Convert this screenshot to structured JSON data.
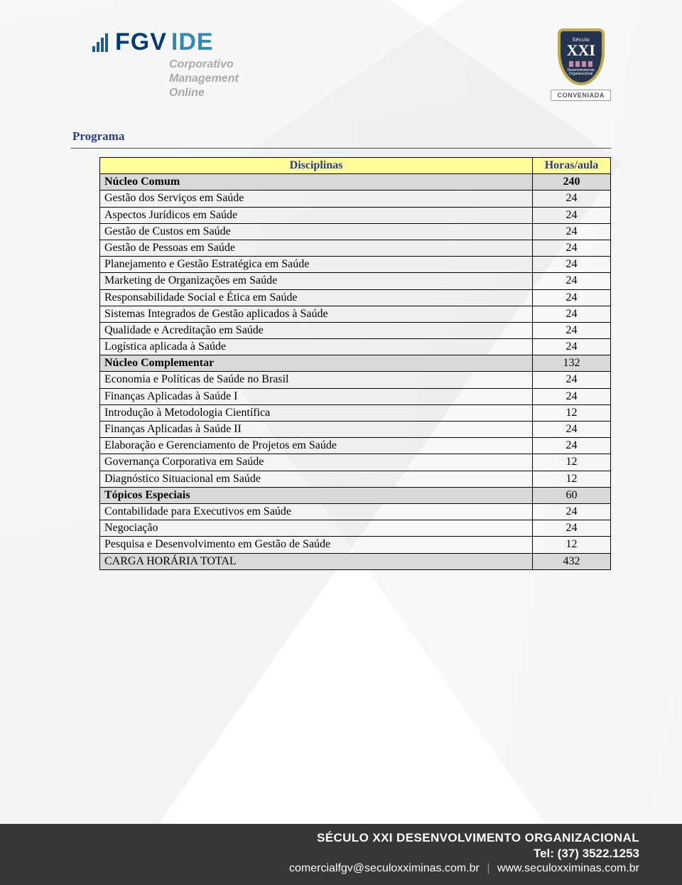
{
  "header": {
    "logo_main": "FGV",
    "logo_suffix": "IDE",
    "sub1": "Corporativo",
    "sub2": "Management",
    "sub3": "Online",
    "shield_top": "Século",
    "shield_main": "XXI",
    "shield_sub1": "Desenvolvimento",
    "shield_sub2": "Organizacional",
    "conveniada": "CONVENIADA"
  },
  "section_title": "Programa",
  "table": {
    "header_bg": "#ffff99",
    "section_bg": "#d9d9d9",
    "header_color": "#2a3b8f",
    "col_label": "Disciplinas",
    "col_value": "Horas/aula",
    "rows": [
      {
        "label": "Núcleo Comum",
        "value": "240",
        "type": "section-bold"
      },
      {
        "label": "Gestão dos Serviços em Saúde",
        "value": "24",
        "type": "data"
      },
      {
        "label": "Aspectos Jurídicos em Saúde",
        "value": "24",
        "type": "data"
      },
      {
        "label": "Gestão de Custos em Saúde",
        "value": "24",
        "type": "data"
      },
      {
        "label": "Gestão de Pessoas em Saúde",
        "value": "24",
        "type": "data"
      },
      {
        "label": "Planejamento e Gestão Estratégica em Saúde",
        "value": "24",
        "type": "data"
      },
      {
        "label": "Marketing de Organizações em Saúde",
        "value": "24",
        "type": "data"
      },
      {
        "label": "Responsabilidade Social e Ética em Saúde",
        "value": "24",
        "type": "data"
      },
      {
        "label": "Sistemas Integrados de Gestão aplicados à Saúde",
        "value": "24",
        "type": "data"
      },
      {
        "label": "Qualidade e Acreditação em Saúde",
        "value": "24",
        "type": "data"
      },
      {
        "label": "Logística aplicada à Saúde",
        "value": "24",
        "type": "data"
      },
      {
        "label": "Núcleo Complementar",
        "value": "132",
        "type": "section"
      },
      {
        "label": "Economia e Políticas de Saúde no Brasil",
        "value": "24",
        "type": "data"
      },
      {
        "label": "Finanças Aplicadas à Saúde I",
        "value": "24",
        "type": "data"
      },
      {
        "label": "Introdução à Metodologia Científica",
        "value": "12",
        "type": "data"
      },
      {
        "label": "Finanças Aplicadas à Saúde II",
        "value": "24",
        "type": "data"
      },
      {
        "label": "Elaboração e Gerenciamento de Projetos em Saúde",
        "value": "24",
        "type": "data"
      },
      {
        "label": "Governança Corporativa em Saúde",
        "value": "12",
        "type": "data"
      },
      {
        "label": "Diagnóstico Situacional em Saúde",
        "value": "12",
        "type": "data"
      },
      {
        "label": "Tópicos Especiais",
        "value": "60",
        "type": "section"
      },
      {
        "label": "Contabilidade para Executivos em Saúde",
        "value": "24",
        "type": "data"
      },
      {
        "label": "Negociação",
        "value": "24",
        "type": "data"
      },
      {
        "label": "Pesquisa e Desenvolvimento em Gestão de Saúde",
        "value": "12",
        "type": "data"
      },
      {
        "label": "CARGA HORÁRIA TOTAL",
        "value": "432",
        "type": "total"
      }
    ]
  },
  "footer": {
    "org": "SÉCULO XXI DESENVOLVIMENTO ORGANIZACIONAL",
    "tel_label": "Tel:",
    "tel": "(37) 3522.1253",
    "email": "comercialfgv@seculoxximinas.com.br",
    "site": "www.seculoxximinas.com.br"
  }
}
